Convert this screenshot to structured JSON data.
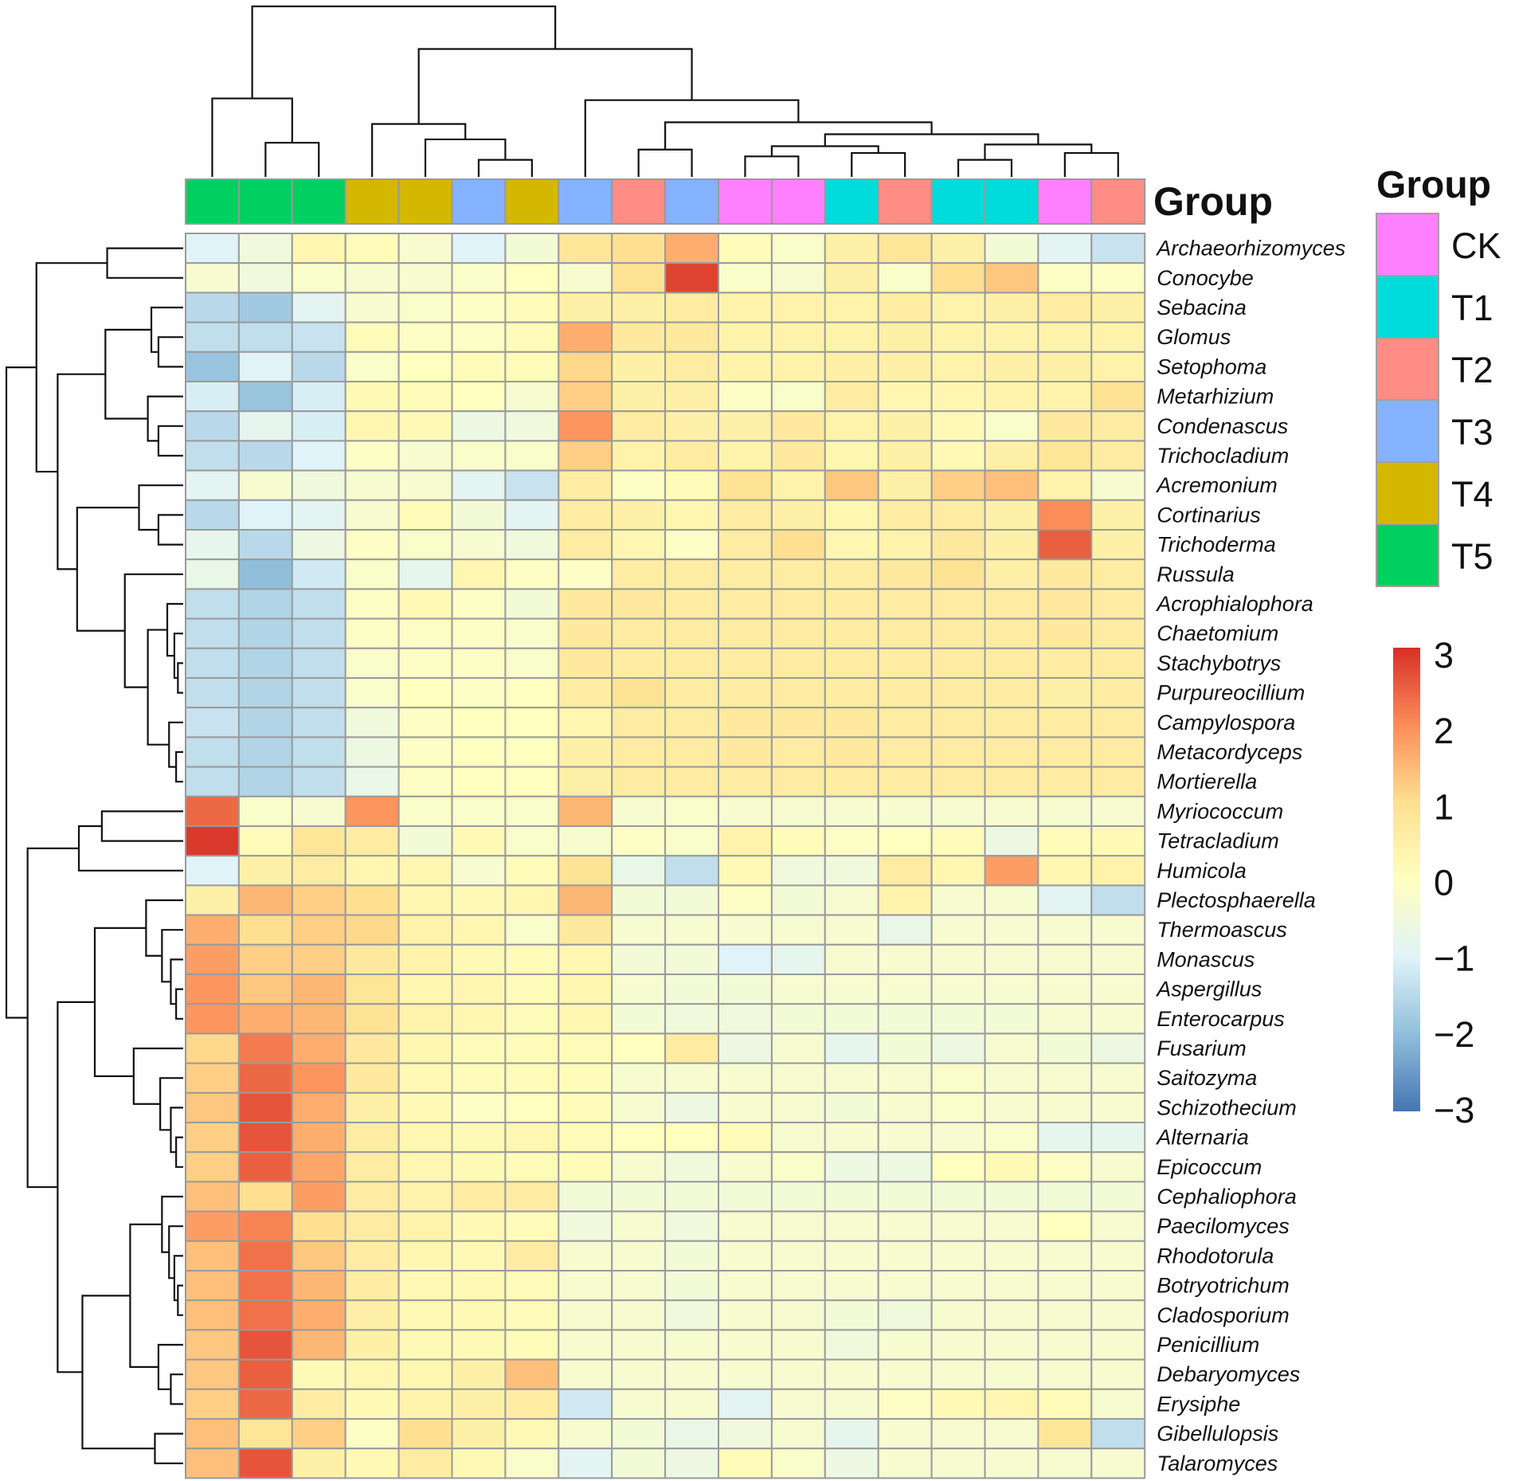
{
  "chart_data": {
    "type": "heatmap",
    "title": "",
    "annotation_title": "Group",
    "legend_title": "Group",
    "groups": [
      {
        "name": "CK",
        "color": "#FF80FF"
      },
      {
        "name": "T1",
        "color": "#00DCDC"
      },
      {
        "name": "T2",
        "color": "#FF8C85"
      },
      {
        "name": "T3",
        "color": "#85B2FF"
      },
      {
        "name": "T4",
        "color": "#D4B800"
      },
      {
        "name": "T5",
        "color": "#00D060"
      }
    ],
    "column_groups": [
      "T5",
      "T5",
      "T5",
      "T4",
      "T4",
      "T3",
      "T4",
      "T3",
      "T2",
      "T3",
      "CK",
      "CK",
      "T1",
      "T2",
      "T1",
      "T1",
      "CK",
      "T2"
    ],
    "rows": [
      "Archaeorhizomyces",
      "Conocybe",
      "Sebacina",
      "Glomus",
      "Setophoma",
      "Metarhizium",
      "Condenascus",
      "Trichocladium",
      "Acremonium",
      "Cortinarius",
      "Trichoderma",
      "Russula",
      "Acrophialophora",
      "Chaetomium",
      "Stachybotrys",
      "Purpureocillium",
      "Campylospora",
      "Metacordyceps",
      "Mortierella",
      "Myriococcum",
      "Tetracladium",
      "Humicola",
      "Plectosphaerella",
      "Thermoascus",
      "Monascus",
      "Aspergillus",
      "Enterocarpus",
      "Fusarium",
      "Saitozyma",
      "Schizothecium",
      "Alternaria",
      "Epicoccum",
      "Cephaliophora",
      "Paecilomyces",
      "Rhodotorula",
      "Botryotrichum",
      "Cladosporium",
      "Penicillium",
      "Debaryomyces",
      "Erysiphe",
      "Gibellulopsis",
      "Talaromyces"
    ],
    "values": [
      [
        -1.0,
        -0.5,
        0.3,
        0.1,
        -0.3,
        -1.0,
        -0.4,
        0.8,
        1.0,
        1.6,
        0.1,
        -0.2,
        0.5,
        0.8,
        0.5,
        -0.4,
        -0.9,
        -1.3
      ],
      [
        -0.3,
        -0.5,
        -0.2,
        -0.3,
        -0.3,
        -0.2,
        0.0,
        -0.3,
        0.9,
        2.8,
        -0.2,
        -0.3,
        0.5,
        -0.2,
        1.0,
        1.3,
        -0.1,
        -0.1
      ],
      [
        -1.5,
        -1.8,
        -0.9,
        -0.3,
        -0.2,
        -0.1,
        0.1,
        0.5,
        0.5,
        0.6,
        0.4,
        0.4,
        0.4,
        0.6,
        0.4,
        0.5,
        0.6,
        0.5
      ],
      [
        -1.4,
        -1.4,
        -1.3,
        0.1,
        -0.1,
        -0.1,
        0.1,
        1.6,
        0.7,
        0.7,
        0.4,
        0.4,
        0.4,
        0.5,
        0.4,
        0.4,
        0.4,
        0.4
      ],
      [
        -1.9,
        -1.0,
        -1.5,
        -0.2,
        0.0,
        0.1,
        0.1,
        1.1,
        0.5,
        0.6,
        0.4,
        0.4,
        0.5,
        0.5,
        0.4,
        0.5,
        0.5,
        0.4
      ],
      [
        -1.1,
        -1.9,
        -1.1,
        0.2,
        0.1,
        0.0,
        -0.3,
        1.2,
        0.5,
        0.5,
        -0.1,
        -0.2,
        0.6,
        0.3,
        0.3,
        0.4,
        0.4,
        0.9
      ],
      [
        -1.5,
        -0.8,
        -1.1,
        0.3,
        0.2,
        -0.6,
        -0.5,
        1.9,
        0.6,
        0.5,
        0.5,
        0.7,
        0.4,
        0.5,
        0.2,
        -0.2,
        0.7,
        0.6
      ],
      [
        -1.4,
        -1.5,
        -1.0,
        -0.1,
        -0.3,
        -0.2,
        -0.2,
        1.2,
        0.4,
        0.6,
        0.4,
        0.7,
        0.3,
        0.5,
        0.2,
        0.5,
        0.8,
        0.6
      ],
      [
        -0.9,
        -0.3,
        -0.5,
        -0.3,
        -0.3,
        -0.9,
        -1.3,
        0.6,
        -0.1,
        0.1,
        0.9,
        0.4,
        1.3,
        0.5,
        1.2,
        1.4,
        0.4,
        -0.3
      ],
      [
        -1.5,
        -1.0,
        -0.9,
        -0.3,
        0.1,
        -0.4,
        -0.9,
        0.6,
        0.5,
        0.3,
        0.6,
        0.5,
        0.3,
        0.6,
        0.6,
        0.5,
        2.0,
        0.5
      ],
      [
        -0.8,
        -1.5,
        -0.6,
        -0.1,
        -0.2,
        -0.3,
        -0.5,
        0.6,
        0.3,
        -0.1,
        0.6,
        1.0,
        0.3,
        0.4,
        0.7,
        0.5,
        2.5,
        0.5
      ],
      [
        -0.7,
        -2.0,
        -1.2,
        -0.2,
        -0.8,
        0.3,
        -0.1,
        -0.1,
        0.6,
        0.6,
        0.6,
        0.6,
        0.6,
        0.7,
        0.9,
        0.5,
        0.7,
        0.6
      ],
      [
        -1.4,
        -1.6,
        -1.4,
        -0.1,
        0.2,
        -0.1,
        -0.4,
        0.7,
        0.7,
        0.6,
        0.6,
        0.6,
        0.6,
        0.6,
        0.6,
        0.6,
        0.7,
        0.6
      ],
      [
        -1.4,
        -1.6,
        -1.4,
        -0.1,
        -0.1,
        -0.1,
        -0.2,
        0.7,
        0.6,
        0.6,
        0.6,
        0.6,
        0.6,
        0.6,
        0.6,
        0.6,
        0.7,
        0.6
      ],
      [
        -1.4,
        -1.6,
        -1.4,
        -0.2,
        -0.1,
        -0.1,
        -0.2,
        0.7,
        0.6,
        0.6,
        0.6,
        0.6,
        0.6,
        0.6,
        0.6,
        0.6,
        0.6,
        0.6
      ],
      [
        -1.4,
        -1.6,
        -1.4,
        -0.2,
        0.0,
        -0.1,
        0.0,
        0.6,
        0.9,
        0.6,
        0.6,
        0.6,
        0.6,
        0.6,
        0.6,
        0.6,
        0.5,
        0.6
      ],
      [
        -1.3,
        -1.6,
        -1.4,
        -0.5,
        -0.1,
        0.0,
        0.0,
        0.3,
        0.6,
        0.6,
        0.7,
        0.7,
        0.7,
        0.6,
        0.6,
        0.6,
        0.6,
        0.6
      ],
      [
        -1.4,
        -1.6,
        -1.4,
        -0.6,
        -0.1,
        0.0,
        0.0,
        0.5,
        0.6,
        0.6,
        0.7,
        0.6,
        0.7,
        0.6,
        0.6,
        0.6,
        0.6,
        0.6
      ],
      [
        -1.4,
        -1.6,
        -1.4,
        -0.7,
        -0.1,
        0.0,
        0.0,
        0.5,
        0.6,
        0.6,
        0.6,
        0.6,
        0.6,
        0.6,
        0.6,
        0.6,
        0.6,
        0.6
      ],
      [
        2.4,
        -0.2,
        -0.3,
        1.9,
        -0.2,
        -0.2,
        -0.2,
        1.5,
        -0.3,
        -0.2,
        -0.3,
        -0.3,
        -0.3,
        -0.3,
        -0.3,
        -0.3,
        -0.3,
        -0.3
      ],
      [
        2.9,
        0.1,
        0.8,
        0.6,
        -0.4,
        0.2,
        -0.2,
        -0.3,
        -0.1,
        -0.2,
        0.4,
        0.1,
        -0.1,
        0.0,
        0.1,
        -0.6,
        0.1,
        0.2
      ],
      [
        -1.0,
        0.5,
        0.6,
        0.3,
        0.3,
        -0.3,
        0.1,
        0.9,
        -0.7,
        -1.4,
        0.2,
        -0.5,
        -0.5,
        0.6,
        0.3,
        1.8,
        0.3,
        0.4
      ],
      [
        0.5,
        1.5,
        1.2,
        1.0,
        0.3,
        0.2,
        0.3,
        1.5,
        -0.4,
        -0.4,
        -0.1,
        -0.4,
        -0.3,
        0.4,
        -0.3,
        -0.3,
        -0.9,
        -1.4
      ],
      [
        1.6,
        1.0,
        1.2,
        1.1,
        0.4,
        0.3,
        -0.2,
        0.7,
        -0.3,
        -0.3,
        -0.3,
        -0.3,
        -0.3,
        -0.7,
        -0.3,
        -0.3,
        -0.3,
        -0.3
      ],
      [
        1.8,
        1.2,
        1.2,
        0.7,
        0.4,
        0.2,
        0.1,
        0.3,
        -0.4,
        -0.4,
        -1.0,
        -0.8,
        -0.3,
        -0.3,
        -0.3,
        -0.3,
        -0.3,
        -0.3
      ],
      [
        1.9,
        1.3,
        1.5,
        0.8,
        0.3,
        0.3,
        0.1,
        0.3,
        -0.3,
        -0.4,
        -0.4,
        -0.3,
        -0.3,
        -0.3,
        -0.3,
        -0.3,
        -0.3,
        -0.3
      ],
      [
        1.9,
        1.6,
        1.5,
        0.9,
        0.4,
        0.3,
        0.1,
        0.3,
        -0.4,
        -0.5,
        -0.5,
        -0.4,
        -0.4,
        -0.4,
        -0.4,
        -0.4,
        -0.3,
        -0.3
      ],
      [
        1.1,
        2.2,
        1.6,
        0.7,
        0.3,
        0.1,
        0.1,
        0.1,
        0.0,
        0.6,
        -0.6,
        -0.3,
        -0.8,
        -0.4,
        -0.6,
        -0.3,
        -0.4,
        -0.6
      ],
      [
        1.2,
        2.4,
        1.9,
        0.7,
        0.2,
        0.1,
        0.1,
        0.1,
        -0.3,
        -0.3,
        -0.3,
        -0.3,
        -0.3,
        -0.3,
        -0.2,
        -0.3,
        -0.3,
        -0.3
      ],
      [
        1.3,
        2.6,
        1.6,
        0.5,
        0.2,
        -0.1,
        0.0,
        0.1,
        -0.3,
        -0.6,
        -0.3,
        -0.3,
        -0.4,
        -0.3,
        -0.2,
        -0.3,
        -0.3,
        -0.3
      ],
      [
        1.2,
        2.6,
        1.6,
        0.6,
        0.3,
        0.2,
        0.3,
        0.1,
        0.0,
        0.0,
        0.1,
        -0.3,
        -0.3,
        -0.3,
        -0.3,
        -0.2,
        -0.8,
        -0.8
      ],
      [
        1.2,
        2.5,
        1.7,
        0.6,
        0.3,
        0.2,
        0.1,
        0.1,
        -0.3,
        -0.5,
        -0.3,
        -0.2,
        -0.6,
        -0.6,
        0.0,
        0.2,
        -0.1,
        -0.3
      ],
      [
        1.4,
        1.0,
        1.8,
        0.6,
        0.4,
        0.6,
        0.6,
        -0.4,
        -0.4,
        -0.4,
        -0.4,
        -0.4,
        -0.4,
        -0.4,
        -0.4,
        -0.4,
        -0.4,
        -0.4
      ],
      [
        1.8,
        2.1,
        1.0,
        0.6,
        0.4,
        0.2,
        0.1,
        -0.5,
        -0.3,
        -0.5,
        -0.3,
        -0.3,
        -0.3,
        -0.3,
        -0.3,
        -0.3,
        0.0,
        -0.3
      ],
      [
        1.4,
        2.3,
        1.3,
        0.6,
        0.3,
        0.2,
        0.6,
        -0.3,
        -0.3,
        -0.4,
        -0.3,
        -0.3,
        -0.3,
        -0.3,
        -0.3,
        -0.3,
        -0.3,
        -0.3
      ],
      [
        1.4,
        2.3,
        1.5,
        0.6,
        0.2,
        0.2,
        0.1,
        -0.3,
        -0.3,
        -0.4,
        -0.3,
        -0.3,
        -0.3,
        -0.3,
        -0.3,
        -0.3,
        -0.3,
        -0.3
      ],
      [
        1.4,
        2.3,
        1.6,
        0.5,
        0.2,
        0.2,
        0.1,
        -0.3,
        -0.3,
        -0.5,
        -0.3,
        -0.3,
        -0.4,
        -0.5,
        -0.3,
        -0.3,
        -0.3,
        -0.3
      ],
      [
        1.3,
        2.6,
        1.5,
        0.5,
        0.2,
        0.2,
        0.1,
        -0.3,
        -0.3,
        -0.3,
        -0.3,
        -0.3,
        -0.5,
        -0.3,
        -0.3,
        -0.3,
        -0.3,
        -0.3
      ],
      [
        1.3,
        2.5,
        0.2,
        0.3,
        0.3,
        0.5,
        1.4,
        -0.3,
        -0.3,
        -0.3,
        -0.3,
        -0.3,
        -0.3,
        -0.3,
        -0.3,
        -0.3,
        -0.3,
        -0.3
      ],
      [
        1.2,
        2.4,
        0.6,
        0.2,
        0.4,
        0.5,
        0.6,
        -1.2,
        -0.3,
        -0.3,
        -0.9,
        -0.3,
        -0.3,
        -0.1,
        0.2,
        0.3,
        0.1,
        -0.3
      ],
      [
        1.4,
        0.8,
        1.2,
        -0.1,
        1.0,
        0.5,
        0.2,
        -0.3,
        -0.4,
        -0.7,
        -0.5,
        -0.3,
        -0.8,
        -0.3,
        -0.3,
        -0.3,
        0.8,
        -1.4
      ],
      [
        1.4,
        2.6,
        0.5,
        0.2,
        0.6,
        0.2,
        -0.2,
        -0.9,
        -0.4,
        -0.6,
        0.1,
        -0.2,
        -0.6,
        -0.3,
        -0.3,
        -0.3,
        -0.3,
        -0.3
      ]
    ],
    "color_scale": {
      "min": -3,
      "max": 3,
      "ticks": [
        "3",
        "2",
        "1",
        "0",
        "−1",
        "−2",
        "−3"
      ],
      "tick_values": [
        3,
        2,
        1,
        0,
        -1,
        -2,
        -3
      ],
      "colors": [
        "#4575B4",
        "#91BFDB",
        "#E0F3F8",
        "#FFFFBF",
        "#FEE090",
        "#FC8D59",
        "#D73027"
      ]
    },
    "column_dendrogram_order": [
      0,
      1,
      2,
      3,
      4,
      5,
      6,
      7,
      8,
      9,
      10,
      11,
      12,
      13,
      14,
      15,
      16,
      17
    ],
    "row_dendrogram_order": "as listed"
  }
}
